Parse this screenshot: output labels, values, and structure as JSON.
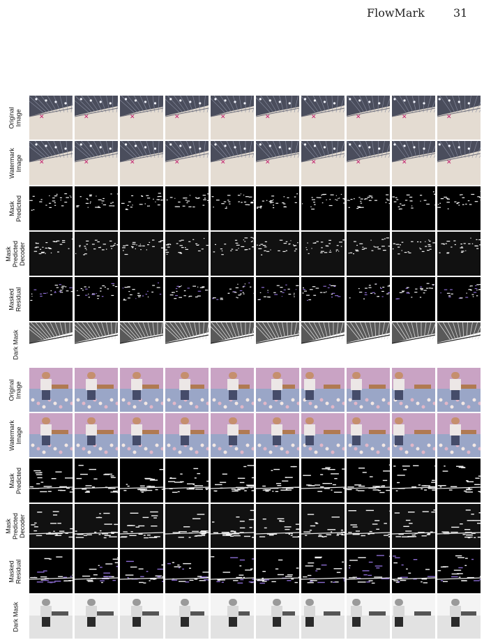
{
  "header": {
    "title": "FlowMark",
    "page_number": "31"
  },
  "row_types": [
    "Original Image",
    "Watermark Image",
    "Mask Predicted",
    "Mask Predicted Decoder",
    "Masked Residual",
    "Dark Mask"
  ],
  "blocks": [
    {
      "scene": "warehouse",
      "rows": [
        {
          "type": "original",
          "label_lines": [
            "Original",
            "Image"
          ]
        },
        {
          "type": "watermark",
          "label_lines": [
            "Watermark",
            "Image"
          ]
        },
        {
          "type": "mask",
          "label_lines": [
            "Mask",
            "Predicted"
          ]
        },
        {
          "type": "decoder",
          "label_lines": [
            "Mask",
            "Predicted",
            "Decoder"
          ]
        },
        {
          "type": "residual",
          "label_lines": [
            "Masked",
            "Residual"
          ]
        },
        {
          "type": "dark",
          "label_lines": [
            "Dark Mask"
          ]
        }
      ],
      "frames": 10
    },
    {
      "scene": "bedroom",
      "rows": [
        {
          "type": "original",
          "label_lines": [
            "Original",
            "Image"
          ]
        },
        {
          "type": "watermark",
          "label_lines": [
            "Watermark",
            "Image"
          ]
        },
        {
          "type": "mask",
          "label_lines": [
            "Mask",
            "Predicted"
          ]
        },
        {
          "type": "decoder",
          "label_lines": [
            "Mask",
            "Predicted",
            "Decoder"
          ]
        },
        {
          "type": "residual",
          "label_lines": [
            "Masked",
            "Residual"
          ]
        },
        {
          "type": "dark",
          "label_lines": [
            "Dark Mask"
          ]
        }
      ],
      "frames": 10
    }
  ]
}
